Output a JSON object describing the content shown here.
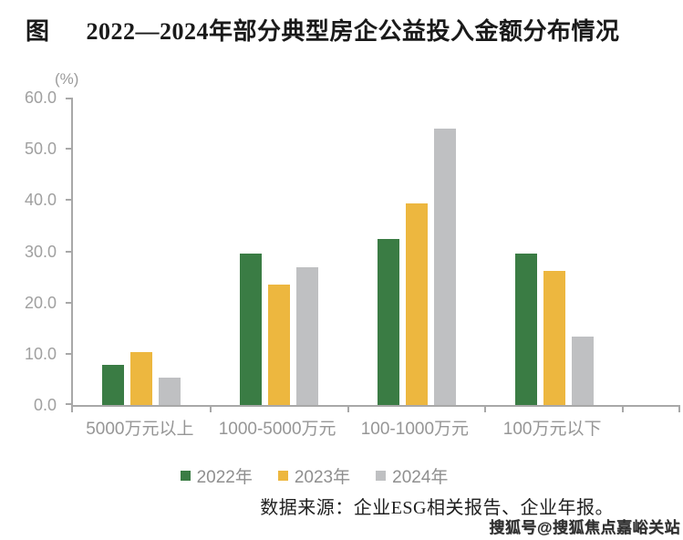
{
  "title": {
    "prefix": "图",
    "text": "2022—2024年部分典型房企公益投入金额分布情况"
  },
  "chart_data": {
    "type": "bar",
    "unit_label": "(%)",
    "categories": [
      "5000万元以上",
      "1000-5000万元",
      "100-1000万元",
      "100万元以下"
    ],
    "series": [
      {
        "name": "2022年",
        "color": "#3A7C44",
        "values": [
          7.9,
          29.5,
          32.4,
          29.5
        ]
      },
      {
        "name": "2023年",
        "color": "#EDB73F",
        "values": [
          10.3,
          23.5,
          39.4,
          26.2
        ]
      },
      {
        "name": "2024年",
        "color": "#BFC0C2",
        "values": [
          5.3,
          26.8,
          54.0,
          13.3
        ]
      }
    ],
    "ylim": [
      0,
      60
    ],
    "yticks": [
      "0.0",
      "10.0",
      "20.0",
      "30.0",
      "40.0",
      "50.0",
      "60.0"
    ],
    "grid": false,
    "legend_position": "bottom"
  },
  "source": "数据来源：企业ESG相关报告、企业年报。",
  "watermark": "搜狐号@搜狐焦点嘉峪关站",
  "colors": {
    "series_2022": "#3A7C44",
    "series_2023": "#EDB73F",
    "series_2024": "#BFC0C2",
    "axis": "#A8A8A8",
    "axis_text": "#9B9B9B",
    "title_text": "#1A1A1A"
  }
}
